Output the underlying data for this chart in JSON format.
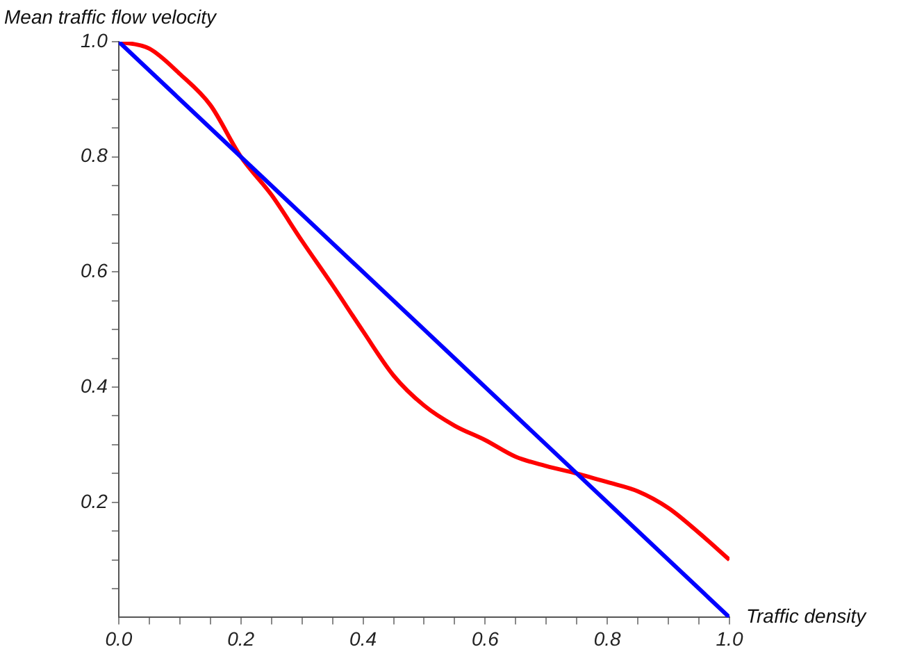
{
  "chart_data": {
    "type": "line",
    "xlabel": "Traffic density",
    "ylabel": "Mean traffic flow velocity",
    "series": [
      {
        "color": "#0000ff",
        "x": [
          0,
          1
        ],
        "values": [
          1,
          0
        ]
      },
      {
        "color": "#ff0000",
        "x": [
          0,
          0.05,
          0.1,
          0.15,
          0.2,
          0.25,
          0.3,
          0.35,
          0.4,
          0.45,
          0.5,
          0.55,
          0.6,
          0.65,
          0.7,
          0.75,
          0.8,
          0.85,
          0.9,
          0.95,
          1
        ],
        "values": [
          1,
          0.988,
          0.944,
          0.89,
          0.8,
          0.734,
          0.654,
          0.577,
          0.497,
          0.42,
          0.368,
          0.333,
          0.308,
          0.279,
          0.263,
          0.25,
          0.235,
          0.219,
          0.19,
          0.147,
          0.1
        ]
      }
    ],
    "xlim": [
      0,
      1
    ],
    "ylim": [
      0,
      1
    ],
    "xticks": [
      {
        "value": 0,
        "label": "0.0"
      },
      {
        "value": 0.05,
        "label": null
      },
      {
        "value": 0.1,
        "label": null
      },
      {
        "value": 0.15,
        "label": null
      },
      {
        "value": 0.2,
        "label": "0.2"
      },
      {
        "value": 0.25,
        "label": null
      },
      {
        "value": 0.3,
        "label": null
      },
      {
        "value": 0.35,
        "label": null
      },
      {
        "value": 0.4,
        "label": "0.4"
      },
      {
        "value": 0.45,
        "label": null
      },
      {
        "value": 0.5,
        "label": null
      },
      {
        "value": 0.55,
        "label": null
      },
      {
        "value": 0.6,
        "label": "0.6"
      },
      {
        "value": 0.65,
        "label": null
      },
      {
        "value": 0.7,
        "label": null
      },
      {
        "value": 0.75,
        "label": null
      },
      {
        "value": 0.8,
        "label": "0.8"
      },
      {
        "value": 0.85,
        "label": null
      },
      {
        "value": 0.9,
        "label": null
      },
      {
        "value": 0.95,
        "label": null
      },
      {
        "value": 1,
        "label": "1.0"
      }
    ],
    "yticks": [
      {
        "value": 0.05,
        "label": null
      },
      {
        "value": 0.1,
        "label": null
      },
      {
        "value": 0.15,
        "label": null
      },
      {
        "value": 0.2,
        "label": "0.2"
      },
      {
        "value": 0.25,
        "label": null
      },
      {
        "value": 0.3,
        "label": null
      },
      {
        "value": 0.35,
        "label": null
      },
      {
        "value": 0.4,
        "label": "0.4"
      },
      {
        "value": 0.45,
        "label": null
      },
      {
        "value": 0.5,
        "label": null
      },
      {
        "value": 0.55,
        "label": null
      },
      {
        "value": 0.6,
        "label": "0.6"
      },
      {
        "value": 0.65,
        "label": null
      },
      {
        "value": 0.7,
        "label": null
      },
      {
        "value": 0.75,
        "label": null
      },
      {
        "value": 0.8,
        "label": "0.8"
      },
      {
        "value": 0.85,
        "label": null
      },
      {
        "value": 0.9,
        "label": null
      },
      {
        "value": 0.95,
        "label": null
      },
      {
        "value": 1,
        "label": "1.0"
      }
    ],
    "grid": false,
    "legend": false,
    "marker": "none",
    "line_style": "solid"
  }
}
